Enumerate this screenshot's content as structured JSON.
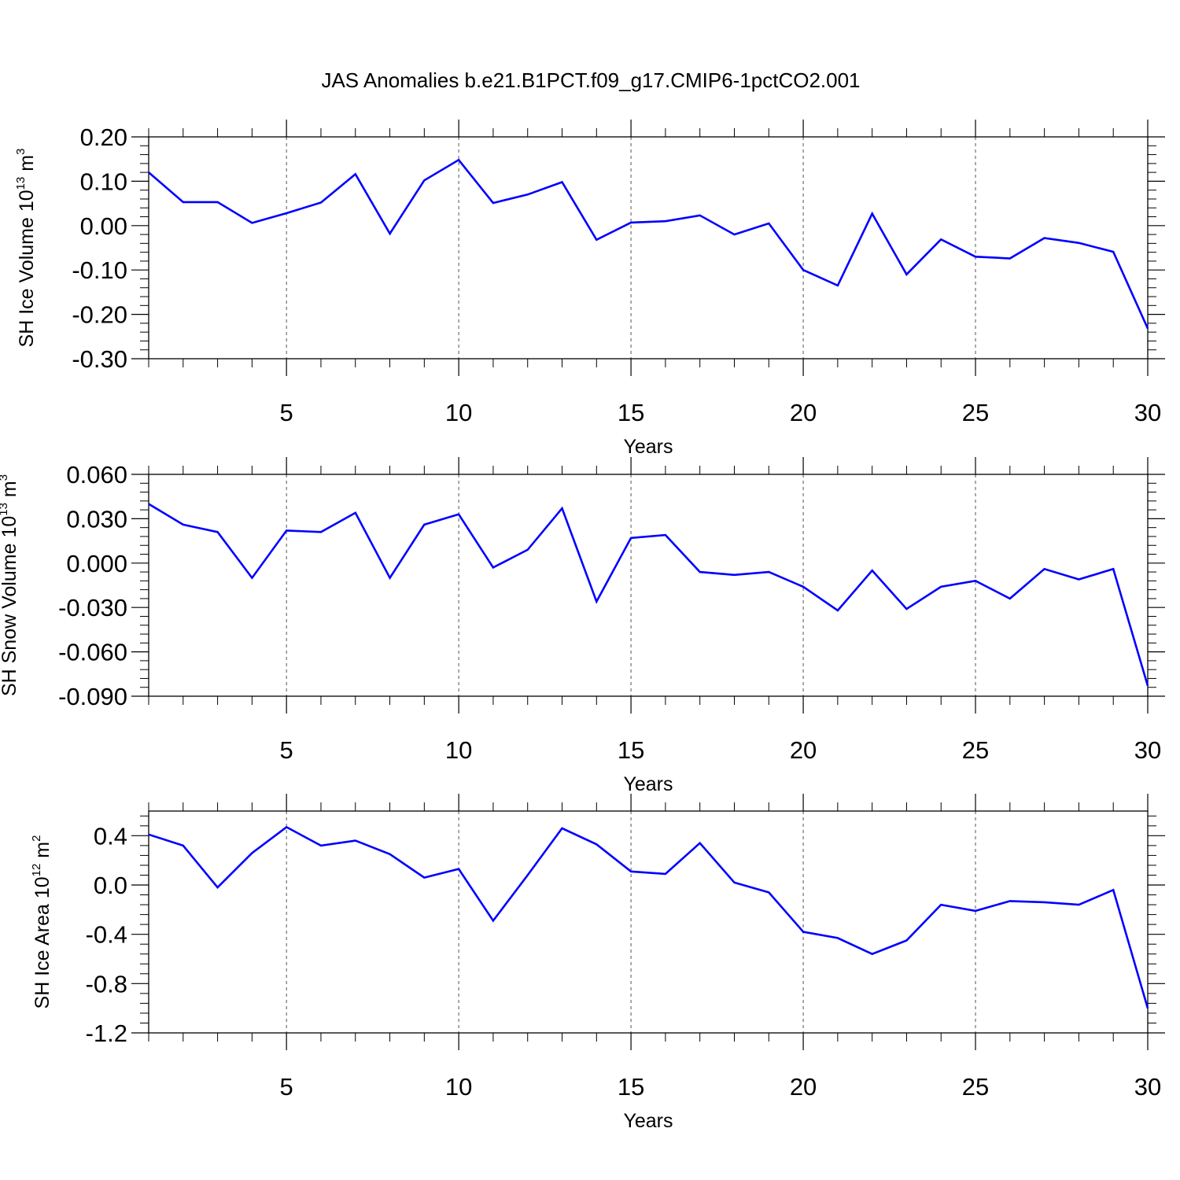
{
  "title": "JAS Anomalies b.e21.B1PCT.f09_g17.CMIP6-1pctCO2.001",
  "line_color": "#0000ff",
  "chart_data": [
    {
      "type": "line",
      "xlabel": "Years",
      "ylabel": {
        "prefix": "SH Ice Volume 10",
        "exp": "13",
        "unit": " m",
        "unit_exp": "3"
      },
      "xlim": [
        1,
        30
      ],
      "ylim": [
        -0.3,
        0.2
      ],
      "yticks": [
        0.2,
        0.1,
        0.0,
        -0.1,
        -0.2,
        -0.3
      ],
      "ytick_labels": [
        "0.20",
        "0.10",
        "0.00",
        "-0.10",
        "-0.20",
        "-0.30"
      ],
      "ytick_minor": 0.02,
      "xticks": [
        5,
        10,
        15,
        20,
        25,
        30
      ],
      "xtick_labels": [
        "5",
        "10",
        "15",
        "20",
        "25",
        "30"
      ],
      "grid": "vertical dashed at major x ticks",
      "x": [
        1,
        2,
        3,
        4,
        5,
        6,
        7,
        8,
        9,
        10,
        11,
        12,
        13,
        14,
        15,
        16,
        17,
        18,
        19,
        20,
        21,
        22,
        23,
        24,
        25,
        26,
        27,
        28,
        29,
        30
      ],
      "values": [
        0.12,
        0.053,
        0.053,
        0.006,
        0.028,
        0.052,
        0.116,
        -0.018,
        0.102,
        0.148,
        0.051,
        0.07,
        0.098,
        -0.032,
        0.007,
        0.01,
        0.023,
        -0.02,
        0.005,
        -0.1,
        -0.135,
        0.027,
        -0.11,
        -0.031,
        -0.07,
        -0.074,
        -0.028,
        -0.039,
        -0.059,
        -0.232
      ]
    },
    {
      "type": "line",
      "xlabel": "Years",
      "ylabel": {
        "prefix": "SH Snow Volume 10",
        "exp": "13",
        "unit": " m",
        "unit_exp": "3"
      },
      "xlim": [
        1,
        30
      ],
      "ylim": [
        -0.09,
        0.06
      ],
      "yticks": [
        0.06,
        0.03,
        0.0,
        -0.03,
        -0.06,
        -0.09
      ],
      "ytick_labels": [
        "0.060",
        "0.030",
        "0.000",
        "-0.030",
        "-0.060",
        "-0.090"
      ],
      "ytick_minor": 0.006,
      "xticks": [
        5,
        10,
        15,
        20,
        25,
        30
      ],
      "xtick_labels": [
        "5",
        "10",
        "15",
        "20",
        "25",
        "30"
      ],
      "grid": "vertical dashed at major x ticks",
      "x": [
        1,
        2,
        3,
        4,
        5,
        6,
        7,
        8,
        9,
        10,
        11,
        12,
        13,
        14,
        15,
        16,
        17,
        18,
        19,
        20,
        21,
        22,
        23,
        24,
        25,
        26,
        27,
        28,
        29,
        30
      ],
      "values": [
        0.04,
        0.026,
        0.021,
        -0.01,
        0.022,
        0.021,
        0.034,
        -0.01,
        0.026,
        0.033,
        -0.003,
        0.009,
        0.037,
        -0.026,
        0.017,
        0.019,
        -0.006,
        -0.008,
        -0.006,
        -0.016,
        -0.032,
        -0.005,
        -0.031,
        -0.016,
        -0.012,
        -0.024,
        -0.004,
        -0.011,
        -0.004,
        -0.083
      ]
    },
    {
      "type": "line",
      "xlabel": "Years",
      "ylabel": {
        "prefix": "SH Ice Area 10",
        "exp": "12",
        "unit": " m",
        "unit_exp": "2"
      },
      "xlim": [
        1,
        30
      ],
      "ylim": [
        -1.2,
        0.6
      ],
      "yticks": [
        0.4,
        0.0,
        -0.4,
        -0.8,
        -1.2
      ],
      "ytick_labels": [
        "0.4",
        "0.0",
        "-0.4",
        "-0.8",
        "-1.2"
      ],
      "ytick_minor": 0.08,
      "xticks": [
        5,
        10,
        15,
        20,
        25,
        30
      ],
      "xtick_labels": [
        "5",
        "10",
        "15",
        "20",
        "25",
        "30"
      ],
      "grid": "vertical dashed at major x ticks",
      "x": [
        1,
        2,
        3,
        4,
        5,
        6,
        7,
        8,
        9,
        10,
        11,
        12,
        13,
        14,
        15,
        16,
        17,
        18,
        19,
        20,
        21,
        22,
        23,
        24,
        25,
        26,
        27,
        28,
        29,
        30
      ],
      "values": [
        0.41,
        0.32,
        -0.02,
        0.26,
        0.47,
        0.32,
        0.36,
        0.25,
        0.06,
        0.13,
        -0.29,
        0.08,
        0.46,
        0.33,
        0.11,
        0.09,
        0.34,
        0.02,
        -0.06,
        -0.38,
        -0.43,
        -0.56,
        -0.45,
        -0.16,
        -0.21,
        -0.13,
        -0.14,
        -0.16,
        -0.04,
        -1.0
      ]
    }
  ]
}
